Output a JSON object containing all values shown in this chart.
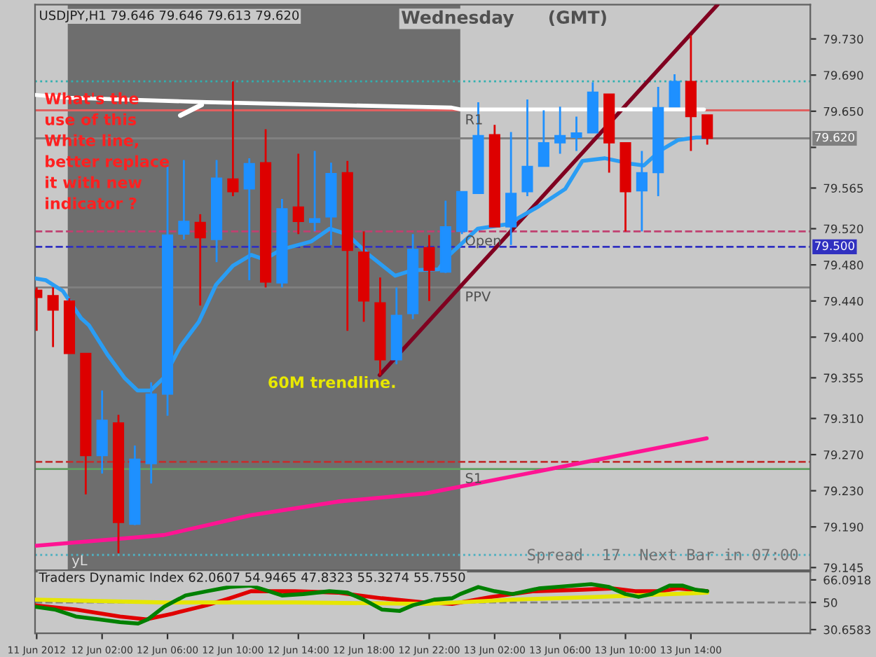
{
  "chart_data": [
    {
      "type": "candlestick",
      "title": "USDJPY,H1 79.646 79.646 79.613 79.620",
      "x": [
        "2012-06-11T22:00",
        "2012-06-11T23:00",
        "2012-06-12T00:00",
        "2012-06-12T01:00",
        "2012-06-12T02:00",
        "2012-06-12T03:00",
        "2012-06-12T04:00",
        "2012-06-12T05:00",
        "2012-06-12T06:00",
        "2012-06-12T07:00",
        "2012-06-12T08:00",
        "2012-06-12T09:00",
        "2012-06-12T10:00",
        "2012-06-12T11:00",
        "2012-06-12T12:00",
        "2012-06-12T13:00",
        "2012-06-12T14:00",
        "2012-06-12T15:00",
        "2012-06-12T16:00",
        "2012-06-12T17:00",
        "2012-06-12T18:00",
        "2012-06-12T19:00",
        "2012-06-12T20:00",
        "2012-06-12T21:00",
        "2012-06-12T22:00",
        "2012-06-12T23:00",
        "2012-06-13T00:00",
        "2012-06-13T01:00",
        "2012-06-13T02:00",
        "2012-06-13T03:00",
        "2012-06-13T04:00",
        "2012-06-13T05:00",
        "2012-06-13T06:00",
        "2012-06-13T07:00",
        "2012-06-13T08:00",
        "2012-06-13T09:00",
        "2012-06-13T10:00",
        "2012-06-13T11:00",
        "2012-06-13T12:00",
        "2012-06-13T13:00",
        "2012-06-13T14:00",
        "2012-06-13T15:00"
      ],
      "ohlc": [
        [
          79.452,
          79.455,
          79.407,
          79.444
        ],
        [
          79.446,
          79.455,
          79.389,
          79.43
        ],
        [
          79.44,
          79.443,
          79.382,
          79.382
        ],
        [
          79.382,
          79.382,
          79.226,
          79.269
        ],
        [
          79.269,
          79.341,
          79.249,
          79.308
        ],
        [
          79.305,
          79.314,
          79.161,
          79.195
        ],
        [
          79.193,
          79.28,
          79.192,
          79.265
        ],
        [
          79.26,
          79.35,
          79.238,
          79.337
        ],
        [
          79.337,
          79.589,
          79.313,
          79.513
        ],
        [
          79.514,
          79.596,
          79.508,
          79.528
        ],
        [
          79.527,
          79.536,
          79.435,
          79.51
        ],
        [
          79.508,
          79.596,
          79.483,
          79.576
        ],
        [
          79.575,
          79.683,
          79.556,
          79.561
        ],
        [
          79.564,
          79.598,
          79.463,
          79.592
        ],
        [
          79.593,
          79.63,
          79.455,
          79.461
        ],
        [
          79.46,
          79.553,
          79.455,
          79.542
        ],
        [
          79.544,
          79.603,
          79.514,
          79.528
        ],
        [
          79.527,
          79.606,
          79.517,
          79.531
        ],
        [
          79.533,
          79.593,
          79.502,
          79.581
        ],
        [
          79.582,
          79.595,
          79.407,
          79.496
        ],
        [
          79.494,
          79.517,
          79.417,
          79.44
        ],
        [
          79.438,
          79.466,
          79.358,
          79.375
        ],
        [
          79.375,
          79.455,
          79.37,
          79.424
        ],
        [
          79.426,
          79.514,
          79.42,
          79.497
        ],
        [
          79.499,
          79.513,
          79.44,
          79.474
        ],
        [
          79.472,
          79.551,
          79.471,
          79.522
        ],
        [
          79.517,
          79.561,
          79.514,
          79.561
        ],
        [
          79.559,
          79.66,
          79.559,
          79.623
        ],
        [
          79.624,
          79.635,
          79.522,
          79.522
        ],
        [
          79.522,
          79.627,
          79.502,
          79.559
        ],
        [
          79.561,
          79.663,
          79.556,
          79.589
        ],
        [
          79.589,
          79.651,
          79.589,
          79.615
        ],
        [
          79.615,
          79.655,
          79.603,
          79.623
        ],
        [
          79.621,
          79.644,
          79.606,
          79.626
        ],
        [
          79.626,
          79.682,
          79.626,
          79.671
        ],
        [
          79.669,
          79.669,
          79.582,
          79.615
        ],
        [
          79.615,
          79.615,
          79.517,
          79.561
        ],
        [
          79.562,
          79.606,
          79.517,
          79.582
        ],
        [
          79.582,
          79.677,
          79.556,
          79.654
        ],
        [
          79.655,
          79.691,
          79.655,
          79.683
        ],
        [
          79.683,
          79.734,
          79.606,
          79.644
        ],
        [
          79.646,
          79.646,
          79.613,
          79.62
        ]
      ],
      "colors": [
        "#dd0000",
        "#dd0000",
        "#dd0000",
        "#dd0000",
        "#1e90ff",
        "#dd0000",
        "#1e90ff",
        "#1e90ff",
        "#1e90ff",
        "#1e90ff",
        "#dd0000",
        "#1e90ff",
        "#dd0000",
        "#1e90ff",
        "#dd0000",
        "#1e90ff",
        "#dd0000",
        "#1e90ff",
        "#1e90ff",
        "#dd0000",
        "#dd0000",
        "#dd0000",
        "#1e90ff",
        "#1e90ff",
        "#dd0000",
        "#1e90ff",
        "#1e90ff",
        "#1e90ff",
        "#dd0000",
        "#1e90ff",
        "#1e90ff",
        "#1e90ff",
        "#1e90ff",
        "#1e90ff",
        "#1e90ff",
        "#dd0000",
        "#dd0000",
        "#1e90ff",
        "#1e90ff",
        "#1e90ff",
        "#dd0000",
        "#dd0000"
      ],
      "series": [
        {
          "type": "line",
          "color": "#2a9df4",
          "x": [
            "2012-06-11T21:54",
            "2012-06-11T22:34",
            "2012-06-11T23:36",
            "2012-06-12T00:43",
            "2012-06-12T01:12",
            "2012-06-12T02:19",
            "2012-06-12T03:22",
            "2012-06-12T04:10",
            "2012-06-12T04:58",
            "2012-06-12T05:46",
            "2012-06-12T06:48",
            "2012-06-12T07:55",
            "2012-06-12T08:58",
            "2012-06-12T10:00",
            "2012-06-12T11:07",
            "2012-06-12T11:55",
            "2012-06-12T12:58",
            "2012-06-12T14:48",
            "2012-06-12T15:55",
            "2012-06-12T16:58",
            "2012-06-12T18:19",
            "2012-06-12T19:55",
            "2012-06-12T20:58",
            "2012-06-12T22:34",
            "2012-06-12T23:07",
            "2012-06-13T00:58",
            "2012-06-13T02:48",
            "2012-06-13T04:43",
            "2012-06-13T06:19",
            "2012-06-13T07:22",
            "2012-06-13T08:43",
            "2012-06-13T10:19",
            "2012-06-13T11:07",
            "2012-06-13T12:10",
            "2012-06-13T13:12",
            "2012-06-13T14:19",
            "2012-06-13T14:58"
          ],
          "values": [
            79.465,
            79.463,
            79.451,
            79.421,
            79.413,
            79.381,
            79.355,
            79.341,
            79.341,
            79.355,
            79.39,
            79.417,
            79.458,
            79.479,
            79.491,
            79.486,
            79.497,
            79.506,
            79.52,
            79.514,
            79.491,
            79.468,
            79.474,
            79.475,
            79.489,
            79.52,
            79.525,
            79.545,
            79.564,
            79.595,
            79.598,
            79.592,
            79.59,
            79.607,
            79.618,
            79.621,
            79.621
          ]
        },
        {
          "type": "line",
          "color": "#ff1493",
          "x": [
            "2012-06-11T21:54",
            "2012-06-12T05:46",
            "2012-06-12T11:07",
            "2012-06-12T16:24",
            "2012-06-12T21:46",
            "2012-06-13T14:58"
          ],
          "values": [
            79.169,
            79.181,
            79.203,
            79.218,
            79.227,
            79.288
          ]
        },
        {
          "type": "line",
          "color": "#ffffff",
          "x": [
            "2012-06-11T21:54",
            "2012-06-11T23:55",
            "2012-06-12T08:24",
            "2012-06-12T23:22",
            "2012-06-12T23:55",
            "2012-06-13T14:48"
          ],
          "values": [
            79.668,
            79.665,
            79.66,
            79.654,
            79.652,
            79.652
          ]
        },
        {
          "type": "line",
          "color": "#800020",
          "x": [
            "2012-06-12T18:58",
            "2012-06-13T15:38"
          ],
          "values": [
            79.358,
            79.768
          ]
        }
      ],
      "bands": [
        {
          "axis": "x",
          "from": "2012-06-11T23:54",
          "to": "2012-06-12T23:54",
          "color": "#6e6e6e"
        }
      ],
      "ref_lines": [
        {
          "axis": "y",
          "value": 79.651,
          "label": "R1",
          "color": "#e06060",
          "line_style": "solid"
        },
        {
          "axis": "y",
          "value": 79.683,
          "color": "#30b0b0",
          "line_style": "dotted"
        },
        {
          "axis": "y",
          "value": 79.62,
          "label": "79.620",
          "color": "#808080",
          "line_style": "solid"
        },
        {
          "axis": "y",
          "value": 79.517,
          "label": "Open",
          "color": "#c04070",
          "line_style": "dashed"
        },
        {
          "axis": "y",
          "value": 79.5,
          "label": "79.500",
          "color": "#3030c0",
          "line_style": "dashed"
        },
        {
          "axis": "y",
          "value": 79.455,
          "label": "PPV",
          "color": "#808080",
          "line_style": "solid"
        },
        {
          "axis": "y",
          "value": 79.262,
          "color": "#c03030",
          "line_style": "dashed"
        },
        {
          "axis": "y",
          "value": 79.254,
          "label": "S1",
          "color": "#60a060",
          "line_style": "solid"
        },
        {
          "axis": "y",
          "value": 79.159,
          "label": "yL",
          "color": "#50b0c0",
          "line_style": "dotted"
        }
      ],
      "annotations": [
        {
          "text": "What's the\nuse of this\nWhite line,\nbetter replace\nit with new\nindicator ?",
          "x": "2012-06-12T08:24",
          "y": 79.66
        },
        "60M trendline.",
        "Wednesday",
        "(GMT)",
        "Spread  17  Next Bar in 07:00"
      ],
      "xlim": [
        "2012-06-11T21:54",
        "2012-06-13T21:18"
      ],
      "ylim": [
        79.142,
        79.768
      ],
      "yticks": [
        {
          "value": 79.73,
          "label": "79.730"
        },
        {
          "value": 79.69,
          "label": "79.690"
        },
        {
          "value": 79.65,
          "label": "79.650"
        },
        {
          "value": 79.61,
          "label": null
        },
        {
          "value": 79.565,
          "label": "79.565"
        },
        {
          "value": 79.52,
          "label": "79.520"
        },
        {
          "value": 79.48,
          "label": "79.480"
        },
        {
          "value": 79.44,
          "label": "79.440"
        },
        {
          "value": 79.4,
          "label": "79.400"
        },
        {
          "value": 79.355,
          "label": "79.355"
        },
        {
          "value": 79.31,
          "label": "79.310"
        },
        {
          "value": 79.27,
          "label": "79.270"
        },
        {
          "value": 79.23,
          "label": "79.230"
        },
        {
          "value": 79.19,
          "label": "79.190"
        },
        {
          "value": 79.145,
          "label": "79.145"
        }
      ],
      "tick_labels": "y"
    },
    {
      "type": "line",
      "title": "Traders Dynamic Index 62.0607 54.9465 47.8323 55.3274 55.7550",
      "series": [
        {
          "color": "#008000",
          "x": [
            "2012-06-11T21:54",
            "2012-06-11T23:06",
            "2012-06-12T00:24",
            "2012-06-12T01:48",
            "2012-06-12T03:06",
            "2012-06-12T04:12",
            "2012-06-12T04:48",
            "2012-06-12T05:48",
            "2012-06-12T07:06",
            "2012-06-12T08:24",
            "2012-06-12T09:48",
            "2012-06-12T11:06",
            "2012-06-12T12:12",
            "2012-06-12T13:00",
            "2012-06-12T14:18",
            "2012-06-12T15:54",
            "2012-06-12T17:00",
            "2012-06-12T18:00",
            "2012-06-12T19:06",
            "2012-06-12T20:12",
            "2012-06-12T21:00",
            "2012-06-12T22:18",
            "2012-06-12T23:24",
            "2012-06-12T23:54",
            "2012-06-13T01:00",
            "2012-06-13T02:00",
            "2012-06-13T03:06",
            "2012-06-13T04:42",
            "2012-06-13T05:48",
            "2012-06-13T07:54",
            "2012-06-13T09:00",
            "2012-06-13T10:00",
            "2012-06-13T10:48",
            "2012-06-13T11:36",
            "2012-06-13T12:42",
            "2012-06-13T13:30",
            "2012-06-13T14:18",
            "2012-06-13T15:00"
          ],
          "values": [
            47,
            45,
            40,
            38,
            36,
            35,
            38,
            47,
            55,
            58,
            61,
            62,
            58,
            55,
            56,
            58,
            57,
            52,
            45,
            44,
            48,
            52,
            53,
            56,
            61,
            58,
            56,
            60,
            61,
            63,
            61,
            56,
            54,
            56,
            62,
            62,
            59,
            58
          ]
        },
        {
          "color": "#e6e600",
          "x": [
            "2012-06-11T21:54",
            "2012-06-12T05:48",
            "2012-06-12T13:48",
            "2012-06-12T21:48",
            "2012-06-13T03:06",
            "2012-06-13T08:24",
            "2012-06-13T15:00"
          ],
          "values": [
            52,
            50,
            50,
            49,
            52,
            54,
            57
          ]
        },
        {
          "color": "#e00000",
          "x": [
            "2012-06-11T21:54",
            "2012-06-12T00:24",
            "2012-06-12T03:06",
            "2012-06-12T04:42",
            "2012-06-12T06:18",
            "2012-06-12T08:24",
            "2012-06-12T09:48",
            "2012-06-12T11:06",
            "2012-06-12T13:48",
            "2012-06-12T16:24",
            "2012-06-12T19:06",
            "2012-06-12T21:48",
            "2012-06-12T23:24",
            "2012-06-13T01:48",
            "2012-06-13T04:24",
            "2012-06-13T07:06",
            "2012-06-13T09:12",
            "2012-06-13T10:36",
            "2012-06-13T12:12",
            "2012-06-13T13:12",
            "2012-06-13T15:00"
          ],
          "values": [
            48,
            45,
            40,
            38,
            42,
            48,
            53,
            58,
            58,
            57,
            53,
            50,
            49,
            54,
            58,
            59,
            60,
            58,
            58,
            60,
            58
          ]
        }
      ],
      "ref_lines": [
        {
          "axis": "y",
          "value": 50,
          "color": "#808080",
          "line_style": "dashed"
        }
      ],
      "xlim": [
        "2012-06-11T21:54",
        "2012-06-13T21:18"
      ],
      "xticks": [
        {
          "value": "2012-06-11T22:00",
          "label": "11 Jun 2012"
        },
        {
          "value": "2012-06-12T02:00",
          "label": "12 Jun 02:00"
        },
        {
          "value": "2012-06-12T06:00",
          "label": "12 Jun 06:00"
        },
        {
          "value": "2012-06-12T10:00",
          "label": "12 Jun 10:00"
        },
        {
          "value": "2012-06-12T14:00",
          "label": "12 Jun 14:00"
        },
        {
          "value": "2012-06-12T18:00",
          "label": "12 Jun 18:00"
        },
        {
          "value": "2012-06-12T22:00",
          "label": "12 Jun 22:00"
        },
        {
          "value": "2012-06-13T02:00",
          "label": "13 Jun 02:00"
        },
        {
          "value": "2012-06-13T06:00",
          "label": "13 Jun 06:00"
        },
        {
          "value": "2012-06-13T10:00",
          "label": "13 Jun 10:00"
        },
        {
          "value": "2012-06-13T14:00",
          "label": "13 Jun 14:00"
        }
      ],
      "ylim": [
        28,
        72
      ],
      "yticks": [
        66.0918,
        50,
        30.6583
      ]
    }
  ]
}
